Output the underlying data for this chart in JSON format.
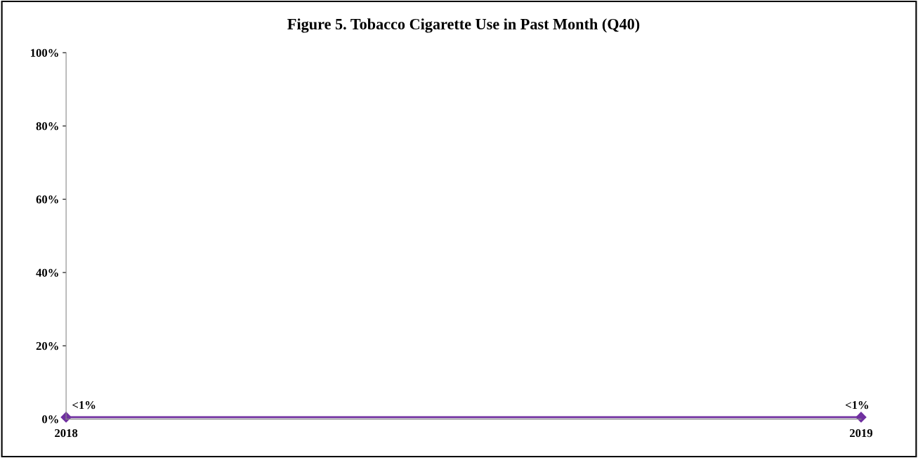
{
  "chart_data": {
    "type": "line",
    "title": "Figure 5. Tobacco Cigarette Use in Past Month (Q40)",
    "categories": [
      "2018",
      "2019"
    ],
    "series": [
      {
        "color": "#7030a0",
        "values": [
          0.5,
          0.5
        ],
        "value_labels": [
          "<1%",
          "<1%"
        ]
      }
    ],
    "ylim": [
      0,
      100
    ],
    "yticks": [
      {
        "value": 0,
        "label": "0%"
      },
      {
        "value": 20,
        "label": "20%"
      },
      {
        "value": 40,
        "label": "40%"
      },
      {
        "value": 60,
        "label": "60%"
      },
      {
        "value": 80,
        "label": "80%"
      },
      {
        "value": 100,
        "label": "100%"
      }
    ],
    "grid": false,
    "legend": false,
    "marker": "diamond",
    "line_style": "solid"
  }
}
